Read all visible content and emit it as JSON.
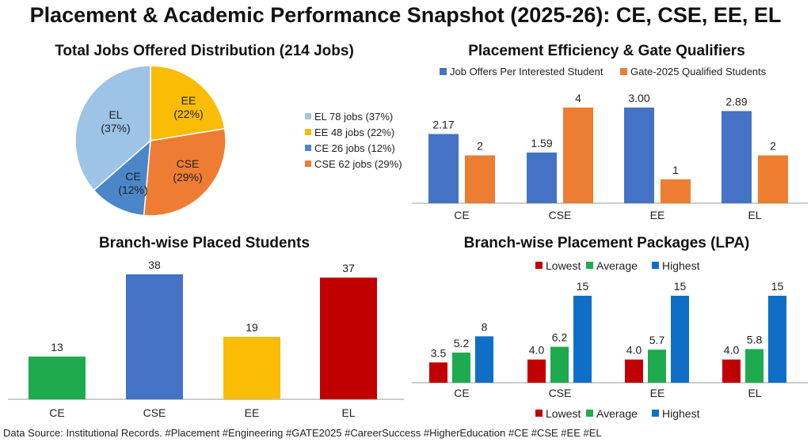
{
  "title": "Placement & Academic Performance Snapshot (2025-26): CE, CSE, EE, EL",
  "footer": "Data Source: Institutional Records. #Placement #Engineering #GATE2025 #CareerSuccess #HigherEducation #CE #CSE #EE #EL",
  "chart_data": [
    {
      "type": "pie",
      "title": "Total Jobs Offered Distribution (214 Jobs)",
      "slices": [
        {
          "label": "EE",
          "value": 48,
          "pct": "22%",
          "color": "#FBBC05",
          "slice_label": "EE\n(22%)",
          "legend": "EE 48 jobs (22%)"
        },
        {
          "label": "CSE",
          "value": 62,
          "pct": "29%",
          "color": "#EE7D33",
          "slice_label": "CSE\n(29%)",
          "legend": "CSE 62 jobs (29%)"
        },
        {
          "label": "CE",
          "value": 26,
          "pct": "12%",
          "color": "#4A86C8",
          "slice_label": "CE\n(12%)",
          "legend": "CE 26 jobs (12%)"
        },
        {
          "label": "EL",
          "value": 78,
          "pct": "37%",
          "color": "#9DC3E6",
          "slice_label": "EL\n(37%)",
          "legend": "EL 78 jobs (37%)"
        }
      ],
      "legend_order": [
        "EL",
        "EE",
        "CE",
        "CSE"
      ],
      "legend_position": "right"
    },
    {
      "type": "bar",
      "title": "Placement Efficiency & Gate Qualifiers",
      "categories": [
        "CE",
        "CSE",
        "EE",
        "EL"
      ],
      "series": [
        {
          "name": "Job Offers Per Interested Student",
          "values": [
            2.17,
            1.59,
            3.0,
            2.89
          ],
          "labels": [
            "2.17",
            "1.59",
            "3.00",
            "2.89"
          ],
          "color": "#4472C4"
        },
        {
          "name": "Gate-2025 Qualified Students",
          "values": [
            2,
            4,
            1,
            2
          ],
          "labels": [
            "2",
            "4",
            "1",
            "2"
          ],
          "color": "#ED7D31"
        }
      ],
      "legend_position": "top",
      "grid": false
    },
    {
      "type": "bar",
      "title": "Branch-wise Placed Students",
      "categories": [
        "CE",
        "CSE",
        "EE",
        "EL"
      ],
      "values": [
        13,
        38,
        19,
        37
      ],
      "colors": [
        "#1EAA4E",
        "#4472C4",
        "#FBBC05",
        "#C00000"
      ],
      "grid": false
    },
    {
      "type": "bar",
      "title": "Branch-wise Placement Packages (LPA)",
      "categories": [
        "CE",
        "CSE",
        "EE",
        "EL"
      ],
      "series": [
        {
          "name": "Lowest",
          "values": [
            3.5,
            4.0,
            4.0,
            4.0
          ],
          "labels": [
            "3.5",
            "4.0",
            "4.0",
            "4.0"
          ],
          "color": "#C00000"
        },
        {
          "name": "Average",
          "values": [
            5.2,
            6.2,
            5.7,
            5.8
          ],
          "labels": [
            "5.2",
            "6.2",
            "5.7",
            "5.8"
          ],
          "color": "#1EAA4E"
        },
        {
          "name": "Highest",
          "values": [
            8,
            15,
            15,
            15
          ],
          "labels": [
            "8",
            "15",
            "15",
            "15"
          ],
          "color": "#0F6FC6"
        }
      ],
      "legend_position": "top and bottom",
      "grid": false
    }
  ]
}
